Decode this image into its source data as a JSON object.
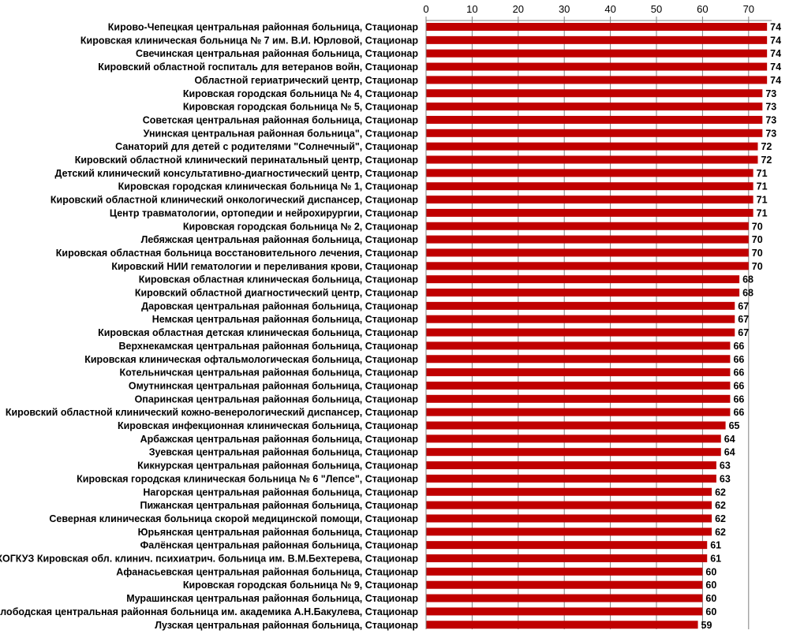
{
  "chart_data": {
    "type": "bar",
    "orientation": "horizontal",
    "title": "",
    "xlabel": "",
    "ylabel": "",
    "xlim": [
      0,
      75
    ],
    "ticks": [
      0,
      10,
      20,
      30,
      40,
      50,
      60,
      70
    ],
    "tick_labels": [
      "0",
      "10",
      "20",
      "30",
      "40",
      "50",
      "60",
      "70"
    ],
    "axis_position": "top",
    "grid": true,
    "legend": "none",
    "bar_color": "#c00000",
    "categories": [
      "Кирово-Чепецкая центральная районная больница, Стационар",
      "Кировская клиническая больница № 7 им. В.И. Юрловой, Стационар",
      "Свечинская центральная районная больница, Стационар",
      "Кировский областной госпиталь для ветеранов войн, Стационар",
      "Областной гериатрический центр, Стационар",
      "Кировская городская больница № 4, Стационар",
      "Кировская городская больница № 5, Стационар",
      "Советская центральная районная больница, Стационар",
      "Унинская центральная районная больница\", Стационар",
      "Санаторий для детей с родителями \"Солнечный\", Стационар",
      "Кировский областной клинический перинатальный центр, Стационар",
      "Детский клинический консультативно-диагностический центр, Стационар",
      "Кировская городская клиническая больница № 1, Стационар",
      "Кировский областной клинический онкологический диспансер, Стационар",
      "Центр травматологии, ортопедии и нейрохирургии, Стационар",
      "Кировская городская больница № 2, Стационар",
      "Лебяжская центральная районная больница, Стационар",
      "Кировская областная больница восстановительного лечения, Стационар",
      "Кировский НИИ гематологии и переливания крови, Стационар",
      "Кировская областная клиническая больница, Стационар",
      "Кировский областной диагностический центр, Стационар",
      "Даровская центральная районная больница, Стационар",
      "Немская центральная районная больница, Стационар",
      "Кировская областная детская клиническая больница, Стационар",
      "Верхнекамская центральная районная больница, Стационар",
      "Кировская клиническая офтальмологическая больница, Стационар",
      "Котельничская центральная районная больница, Стационар",
      "Омутнинская центральная районная больница, Стационар",
      "Опаринская центральная районная больница, Стационар",
      "Кировский областной клинический кожно-венерологический диспансер, Стационар",
      "Кировская инфекционная клиническая больница, Стационар",
      "Арбажская центральная районная больница, Стационар",
      "Зуевская центральная районная больница, Стационар",
      "Кикнурская центральная районная больница, Стационар",
      "Кировская городская клиническая больница № 6 \"Лепсе\", Стационар",
      "Нагорская центральная районная больница, Стационар",
      "Пижанская центральная районная больница, Стационар",
      "Северная клиническая больница скорой медицинской помощи, Стационар",
      "Юрьянская центральная районная больница, Стационар",
      "Фалёнская центральная районная больница, Стационар",
      "КОГКУЗ Кировская обл. клинич. психиатрич. больница им. В.М.Бехтерева, Стационар",
      "Афанасьевская центральная районная больница, Стационар",
      "Кировская городская больница № 9, Стационар",
      "Мурашинская центральная районная больница, Стационар",
      "Слободская центральная районная больница им. академика А.Н.Бакулева, Стационар",
      "Лузская центральная районная больница, Стационар"
    ],
    "values": [
      74,
      74,
      74,
      74,
      74,
      73,
      73,
      73,
      73,
      72,
      72,
      71,
      71,
      71,
      71,
      70,
      70,
      70,
      70,
      68,
      68,
      67,
      67,
      67,
      66,
      66,
      66,
      66,
      66,
      66,
      65,
      64,
      64,
      63,
      63,
      62,
      62,
      62,
      62,
      61,
      61,
      60,
      60,
      60,
      60,
      59
    ],
    "value_labels": [
      "74",
      "74",
      "74",
      "74",
      "74",
      "73",
      "73",
      "73",
      "73",
      "72",
      "72",
      "71",
      "71",
      "71",
      "71",
      "70",
      "70",
      "70",
      "70",
      "68",
      "68",
      "67",
      "67",
      "67",
      "66",
      "66",
      "66",
      "66",
      "66",
      "66",
      "65",
      "64",
      "64",
      "63",
      "63",
      "62",
      "62",
      "62",
      "62",
      "61",
      "61",
      "60",
      "60",
      "60",
      "60",
      "59"
    ]
  }
}
